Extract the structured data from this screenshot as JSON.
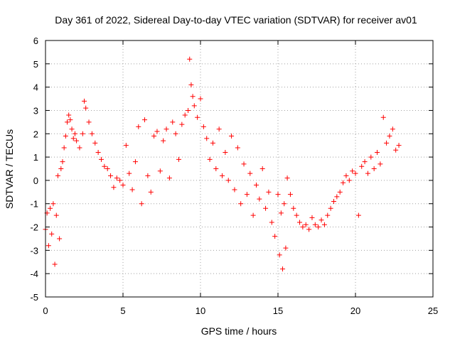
{
  "chart_data": {
    "type": "scatter",
    "title": "Day 361 of 2022, Sidereal Day-to-day VTEC variation (SDTVAR) for receiver av01",
    "xlabel": "GPS time / hours",
    "ylabel": "SDTVAR / TECUs",
    "xlim": [
      0,
      25
    ],
    "ylim": [
      -5,
      6
    ],
    "xticks": [
      "0",
      "5",
      "10",
      "15",
      "20",
      "25"
    ],
    "yticks": [
      "-5",
      "-4",
      "-3",
      "-2",
      "-1",
      "0",
      "1",
      "2",
      "3",
      "4",
      "5",
      "6"
    ],
    "grid": true,
    "marker": "+",
    "color": "#ff0000",
    "series": [
      {
        "name": "SDTVAR",
        "x": [
          0.0,
          0.1,
          0.2,
          0.3,
          0.4,
          0.5,
          0.6,
          0.7,
          0.8,
          0.9,
          1.0,
          1.1,
          1.2,
          1.3,
          1.4,
          1.5,
          1.6,
          1.7,
          1.8,
          1.9,
          2.0,
          2.2,
          2.4,
          2.5,
          2.6,
          2.8,
          3.0,
          3.2,
          3.4,
          3.6,
          3.8,
          4.0,
          4.2,
          4.4,
          4.6,
          4.8,
          5.0,
          5.2,
          5.4,
          5.6,
          5.8,
          6.0,
          6.2,
          6.4,
          6.6,
          6.8,
          7.0,
          7.2,
          7.4,
          7.6,
          7.8,
          8.0,
          8.2,
          8.4,
          8.6,
          8.8,
          9.0,
          9.2,
          9.3,
          9.4,
          9.5,
          9.6,
          9.8,
          10.0,
          10.2,
          10.4,
          10.6,
          10.8,
          11.0,
          11.2,
          11.4,
          11.6,
          11.8,
          12.0,
          12.2,
          12.4,
          12.6,
          12.8,
          13.0,
          13.2,
          13.4,
          13.6,
          13.8,
          14.0,
          14.2,
          14.4,
          14.6,
          14.8,
          15.0,
          15.1,
          15.2,
          15.3,
          15.4,
          15.5,
          15.6,
          15.8,
          16.0,
          16.2,
          16.4,
          16.6,
          16.8,
          17.0,
          17.2,
          17.4,
          17.6,
          17.8,
          18.0,
          18.2,
          18.4,
          18.6,
          18.8,
          19.0,
          19.2,
          19.4,
          19.6,
          19.8,
          20.0,
          20.2,
          20.4,
          20.6,
          20.8,
          21.0,
          21.2,
          21.4,
          21.6,
          21.8,
          22.0,
          22.2,
          22.4,
          22.6,
          22.8
        ],
        "y": [
          -2.1,
          -1.4,
          -2.8,
          -1.2,
          -2.3,
          -1.0,
          -3.6,
          -1.5,
          0.2,
          -2.5,
          0.5,
          0.8,
          1.4,
          1.9,
          2.5,
          2.8,
          2.6,
          2.2,
          1.8,
          2.0,
          1.7,
          1.4,
          2.0,
          3.4,
          3.1,
          2.5,
          2.0,
          1.6,
          1.2,
          0.9,
          0.6,
          0.5,
          0.2,
          -0.3,
          0.1,
          0.0,
          -0.2,
          1.5,
          0.3,
          -0.4,
          0.8,
          2.3,
          -1.0,
          2.6,
          0.2,
          -0.5,
          1.9,
          2.1,
          0.4,
          1.7,
          2.2,
          0.1,
          2.5,
          2.0,
          0.9,
          2.4,
          2.8,
          3.0,
          5.2,
          4.1,
          3.6,
          3.2,
          2.7,
          3.5,
          2.3,
          1.8,
          0.9,
          1.6,
          0.5,
          2.2,
          0.2,
          1.2,
          0.0,
          1.9,
          -0.4,
          1.4,
          -1.0,
          0.7,
          -0.6,
          0.3,
          -1.5,
          -0.2,
          -0.8,
          0.5,
          -1.2,
          -0.5,
          -1.8,
          -2.4,
          -0.6,
          -3.2,
          -1.4,
          -3.8,
          -1.0,
          -2.9,
          0.1,
          -0.6,
          -1.2,
          -1.5,
          -1.8,
          -2.0,
          -1.9,
          -2.1,
          -1.6,
          -1.9,
          -2.0,
          -1.7,
          -1.9,
          -1.5,
          -1.2,
          -0.9,
          -0.7,
          -0.5,
          -0.1,
          0.2,
          0.0,
          0.4,
          0.3,
          -1.5,
          0.6,
          0.8,
          0.3,
          1.0,
          0.5,
          1.2,
          0.7,
          2.7,
          1.6,
          1.9,
          2.2,
          1.3,
          1.5
        ]
      }
    ]
  }
}
